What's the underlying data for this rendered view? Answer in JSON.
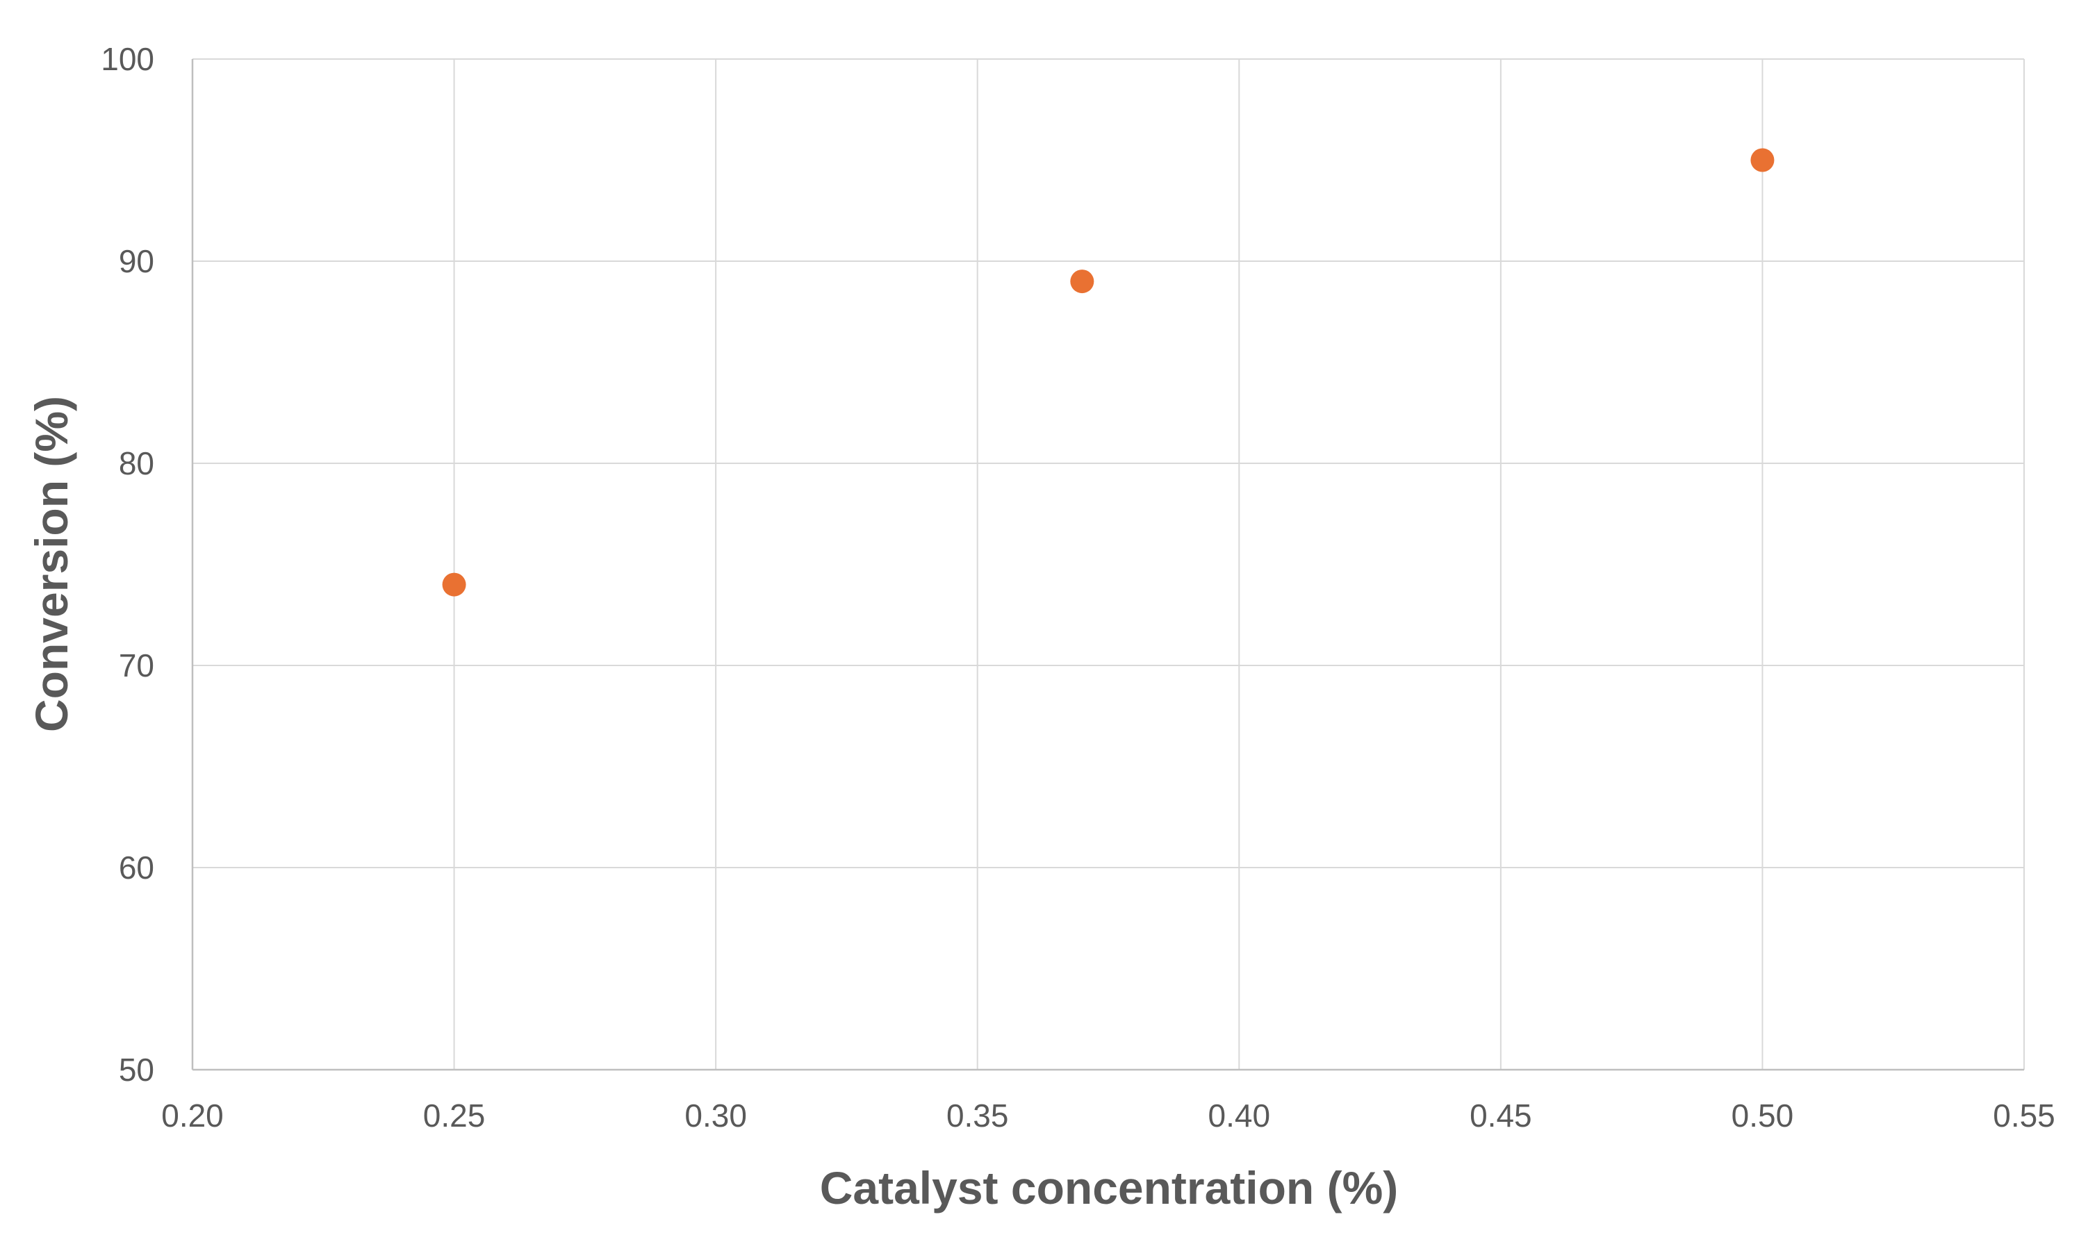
{
  "chart_data": {
    "type": "scatter",
    "title": "",
    "xlabel": "Catalyst concentration (%)",
    "ylabel": "Conversion (%)",
    "xlim": [
      0.2,
      0.55
    ],
    "ylim": [
      50,
      100
    ],
    "x_ticks": [
      "0.20",
      "0.25",
      "0.30",
      "0.35",
      "0.40",
      "0.45",
      "0.50",
      "0.55"
    ],
    "y_ticks": [
      "50",
      "60",
      "70",
      "80",
      "90",
      "100"
    ],
    "grid": true,
    "legend": "none",
    "series": [
      {
        "color": "#E97132",
        "points": [
          {
            "x": 0.25,
            "y": 74
          },
          {
            "x": 0.37,
            "y": 89
          },
          {
            "x": 0.5,
            "y": 95
          }
        ]
      }
    ]
  }
}
